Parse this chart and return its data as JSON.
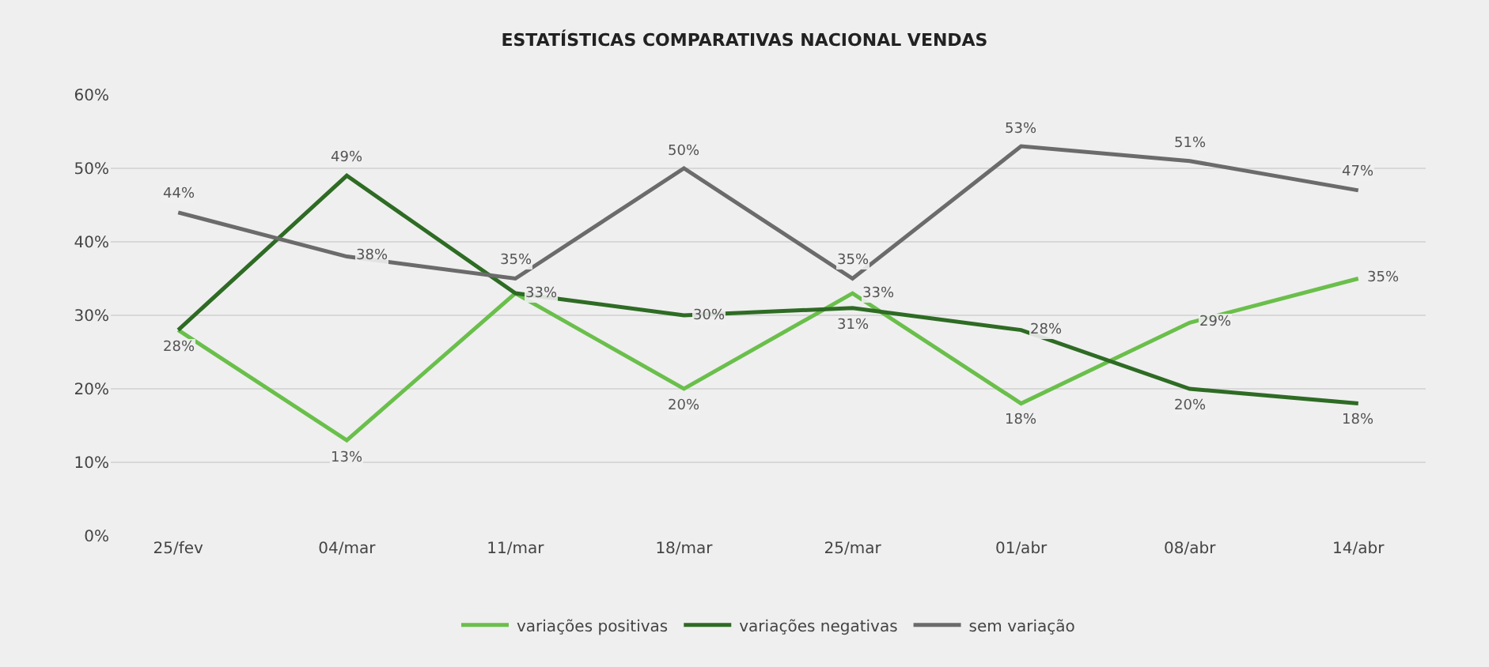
{
  "chart_data": {
    "type": "line",
    "title": "ESTATÍSTICAS COMPARATIVAS NACIONAL VENDAS",
    "categories": [
      "25/fev",
      "04/mar",
      "11/mar",
      "18/mar",
      "25/mar",
      "01/abr",
      "08/abr",
      "14/abr"
    ],
    "series": [
      {
        "name": "variações positivas",
        "color": "#6abf4b",
        "values": [
          28,
          13,
          33,
          20,
          33,
          18,
          29,
          35
        ],
        "value_labels": [
          "28%",
          "13%",
          null,
          "20%",
          "33%",
          "18%",
          "29%",
          "35%"
        ]
      },
      {
        "name": "variações negativas",
        "color": "#2e6b24",
        "values": [
          28,
          49,
          33,
          30,
          31,
          28,
          20,
          18
        ],
        "value_labels": [
          null,
          "49%",
          "33%",
          "30%",
          "31%",
          "28%",
          "20%",
          "18%"
        ]
      },
      {
        "name": "sem variação",
        "color": "#6b6b6b",
        "values": [
          44,
          38,
          35,
          50,
          35,
          53,
          51,
          47
        ],
        "value_labels": [
          "44%",
          "38%",
          "35%",
          "50%",
          "35%",
          "53%",
          "51%",
          "47%"
        ]
      }
    ],
    "ylim": [
      0,
      60
    ],
    "yticks": [
      {
        "value": 0,
        "label": "0%"
      },
      {
        "value": 10,
        "label": "10%"
      },
      {
        "value": 20,
        "label": "20%"
      },
      {
        "value": 30,
        "label": "30%"
      },
      {
        "value": 40,
        "label": "40%"
      },
      {
        "value": 50,
        "label": "50%"
      },
      {
        "value": 60,
        "label": "60%"
      }
    ],
    "grid": "y",
    "legend": "bottom",
    "marker": "none",
    "line_style": "solid"
  }
}
